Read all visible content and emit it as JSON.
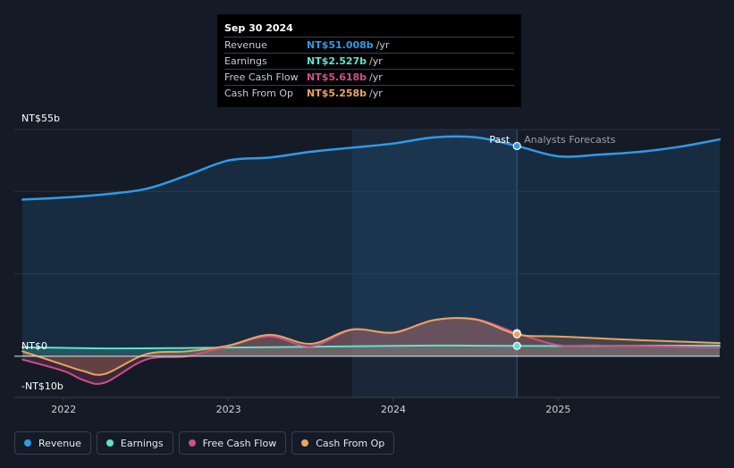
{
  "tooltip": {
    "date": "Sep 30 2024",
    "rows": [
      {
        "name": "Revenue",
        "value": "NT$51.008b",
        "unit": "/yr",
        "color": "#2e9be8"
      },
      {
        "name": "Earnings",
        "value": "NT$2.527b",
        "unit": "/yr",
        "color": "#5ee2cf"
      },
      {
        "name": "Free Cash Flow",
        "value": "NT$5.618b",
        "unit": "/yr",
        "color": "#cf4f8c"
      },
      {
        "name": "Cash From Op",
        "value": "NT$5.258b",
        "unit": "/yr",
        "color": "#e9a55e"
      }
    ]
  },
  "labels": {
    "past": "Past",
    "forecast": "Analysts Forecasts"
  },
  "legend": [
    {
      "label": "Revenue",
      "color": "#2e9be8"
    },
    {
      "label": "Earnings",
      "color": "#5ee2cf"
    },
    {
      "label": "Free Cash Flow",
      "color": "#cf4f8c"
    },
    {
      "label": "Cash From Op",
      "color": "#e9a55e"
    }
  ],
  "chart_data": {
    "type": "line",
    "title": "",
    "xlabel": "",
    "ylabel": "",
    "ylim": [
      -10,
      55
    ],
    "xlim": [
      2021.7,
      2025.98
    ],
    "x_ticks": [
      2022,
      2023,
      2024,
      2025
    ],
    "x_tick_labels": [
      "2022",
      "2023",
      "2024",
      "2025"
    ],
    "y_tick_labels": [
      {
        "value": 55,
        "label": "NT$55b"
      },
      {
        "value": 0,
        "label": "NT$0"
      },
      {
        "value": -10,
        "label": "-NT$10b"
      }
    ],
    "gridlines": [
      55,
      40,
      20
    ],
    "past_shade_start": 2023.75,
    "forecast_start": 2024.75,
    "series": [
      {
        "name": "Revenue",
        "color": "#2e9be8",
        "x": [
          2021.75,
          2022.0,
          2022.25,
          2022.5,
          2022.75,
          2023.0,
          2023.25,
          2023.5,
          2023.75,
          2024.0,
          2024.25,
          2024.5,
          2024.75,
          2025.0,
          2025.25,
          2025.5,
          2025.75,
          2025.98
        ],
        "values": [
          38,
          38.5,
          39.3,
          40.6,
          43.9,
          47.5,
          48.2,
          49.6,
          50.6,
          51.6,
          53.1,
          53.1,
          51.0,
          48.5,
          48.9,
          49.6,
          50.9,
          52.6
        ]
      },
      {
        "name": "Earnings",
        "color": "#5ee2cf",
        "x": [
          2021.75,
          2022.25,
          2022.75,
          2023.25,
          2023.75,
          2024.25,
          2024.75,
          2025.25,
          2025.98
        ],
        "values": [
          2.2,
          1.9,
          2.0,
          2.2,
          2.4,
          2.6,
          2.5,
          2.5,
          2.6
        ]
      },
      {
        "name": "Free Cash Flow",
        "color": "#cf4f8c",
        "x": [
          2021.75,
          2022.0,
          2022.12,
          2022.25,
          2022.5,
          2022.75,
          2023.0,
          2023.25,
          2023.5,
          2023.75,
          2024.0,
          2024.25,
          2024.5,
          2024.75,
          2025.0,
          2025.25,
          2025.98
        ],
        "values": [
          -0.8,
          -3.6,
          -5.8,
          -6.4,
          -0.8,
          0.0,
          2.5,
          4.8,
          2.4,
          6.4,
          5.8,
          8.8,
          9.0,
          5.6,
          2.7,
          2.6,
          2.1
        ]
      },
      {
        "name": "Cash From Op",
        "color": "#e9a55e",
        "x": [
          2021.75,
          2022.0,
          2022.12,
          2022.25,
          2022.5,
          2022.75,
          2023.0,
          2023.25,
          2023.5,
          2023.75,
          2024.0,
          2024.25,
          2024.5,
          2024.75,
          2025.0,
          2025.5,
          2025.98
        ],
        "values": [
          1.2,
          -2.1,
          -3.6,
          -4.3,
          0.5,
          1.2,
          2.6,
          5.2,
          3.0,
          6.5,
          5.7,
          8.8,
          8.9,
          5.3,
          4.8,
          3.9,
          3.2
        ]
      }
    ]
  }
}
